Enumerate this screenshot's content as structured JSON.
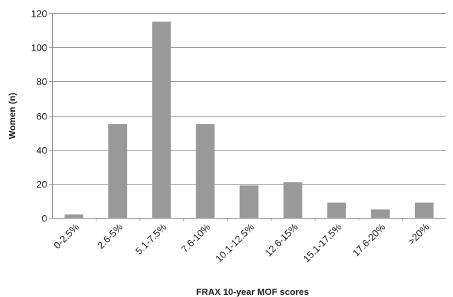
{
  "chart_data": {
    "type": "bar",
    "title": "",
    "xlabel": "FRAX 10-year MOF scores",
    "ylabel": "Women (n)",
    "categories": [
      "0-2.5%",
      "2.6-5%",
      "5.1-7.5%",
      "7.6-10%",
      "10.1-12.5%",
      "12.6-15%",
      "15.1-17.5%",
      "17.6-20%",
      ">20%"
    ],
    "values": [
      2,
      55,
      115,
      55,
      19,
      21,
      9,
      5,
      9
    ],
    "ylim": [
      0,
      120
    ],
    "yticks": [
      0,
      20,
      40,
      60,
      80,
      100,
      120
    ],
    "grid": true,
    "legend": "none",
    "bar_color": "#999999",
    "grid_color": "#9a9a9a"
  }
}
